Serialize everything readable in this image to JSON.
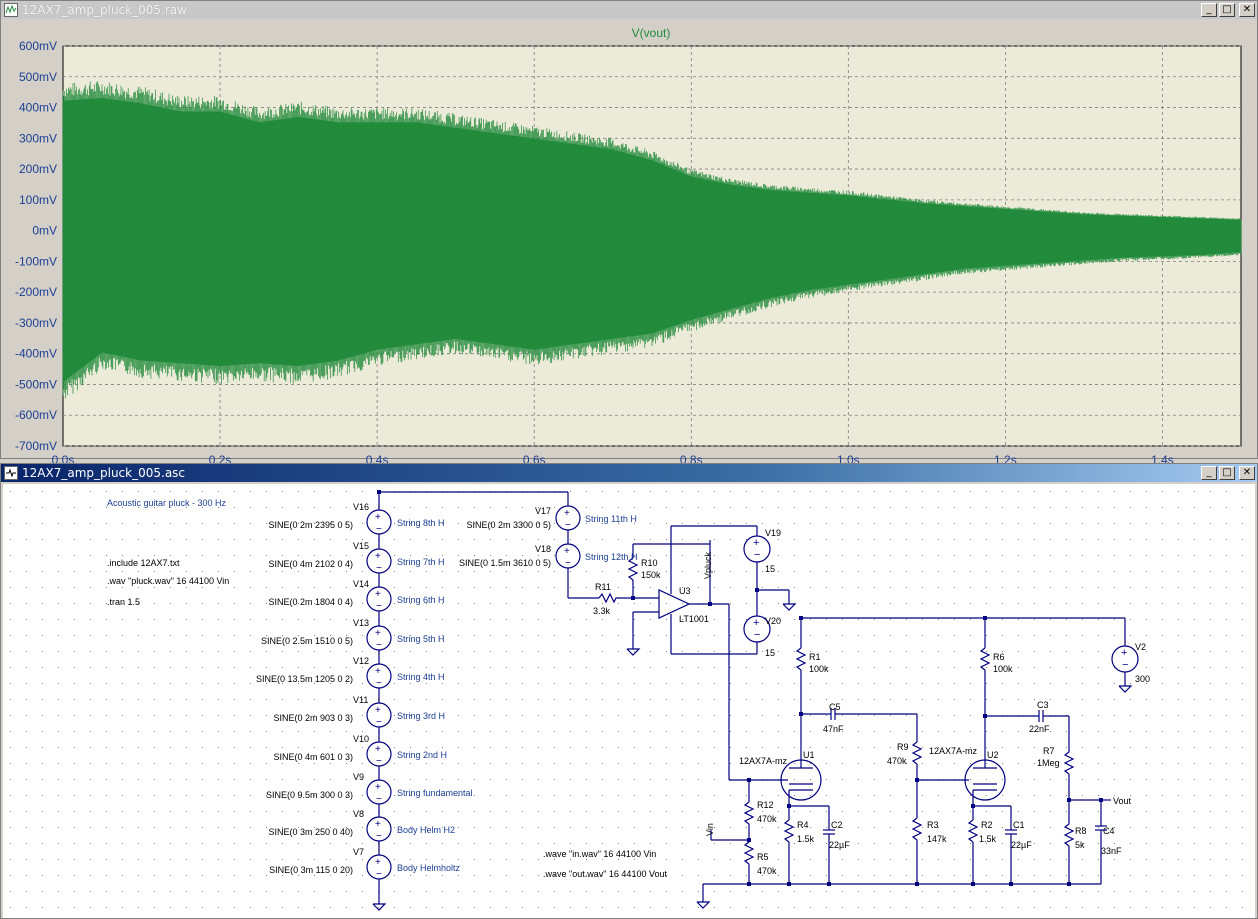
{
  "plot_window": {
    "title": "12AX7_amp_pluck_005.raw",
    "trace_label": "V(vout)",
    "trace_color": "#228b3c",
    "y_ticks": [
      "600mV",
      "500mV",
      "400mV",
      "300mV",
      "200mV",
      "100mV",
      "0mV",
      "-100mV",
      "-200mV",
      "-300mV",
      "-400mV",
      "-500mV",
      "-600mV",
      "-700mV"
    ],
    "x_ticks": [
      "0.0s",
      "0.2s",
      "0.4s",
      "0.6s",
      "0.8s",
      "1.0s",
      "1.2s",
      "1.4s"
    ]
  },
  "chart_data": {
    "type": "line",
    "title": "V(vout)",
    "xlabel": "",
    "ylabel": "",
    "x_unit": "s",
    "y_unit": "mV",
    "xlim": [
      0,
      1.5
    ],
    "ylim": [
      -700,
      600
    ],
    "grid": true,
    "series": [
      {
        "name": "V(vout)",
        "envelope_top": [
          [
            0.0,
            480
          ],
          [
            0.05,
            490
          ],
          [
            0.1,
            470
          ],
          [
            0.15,
            440
          ],
          [
            0.2,
            440
          ],
          [
            0.25,
            400
          ],
          [
            0.3,
            420
          ],
          [
            0.35,
            400
          ],
          [
            0.4,
            400
          ],
          [
            0.45,
            400
          ],
          [
            0.5,
            380
          ],
          [
            0.55,
            360
          ],
          [
            0.6,
            340
          ],
          [
            0.65,
            320
          ],
          [
            0.7,
            300
          ],
          [
            0.75,
            260
          ],
          [
            0.8,
            200
          ],
          [
            0.85,
            170
          ],
          [
            0.9,
            150
          ],
          [
            0.95,
            140
          ],
          [
            1.0,
            130
          ],
          [
            1.05,
            115
          ],
          [
            1.1,
            100
          ],
          [
            1.15,
            90
          ],
          [
            1.2,
            80
          ],
          [
            1.25,
            70
          ],
          [
            1.3,
            60
          ],
          [
            1.35,
            55
          ],
          [
            1.4,
            50
          ],
          [
            1.45,
            45
          ],
          [
            1.5,
            40
          ]
        ],
        "envelope_bottom": [
          [
            0.0,
            -560
          ],
          [
            0.05,
            -450
          ],
          [
            0.1,
            -480
          ],
          [
            0.15,
            -490
          ],
          [
            0.2,
            -500
          ],
          [
            0.25,
            -490
          ],
          [
            0.3,
            -500
          ],
          [
            0.35,
            -480
          ],
          [
            0.4,
            -440
          ],
          [
            0.45,
            -420
          ],
          [
            0.5,
            -400
          ],
          [
            0.55,
            -420
          ],
          [
            0.6,
            -440
          ],
          [
            0.65,
            -420
          ],
          [
            0.7,
            -400
          ],
          [
            0.75,
            -380
          ],
          [
            0.8,
            -330
          ],
          [
            0.85,
            -290
          ],
          [
            0.9,
            -250
          ],
          [
            0.95,
            -220
          ],
          [
            1.0,
            -200
          ],
          [
            1.05,
            -180
          ],
          [
            1.1,
            -160
          ],
          [
            1.15,
            -140
          ],
          [
            1.2,
            -130
          ],
          [
            1.25,
            -120
          ],
          [
            1.3,
            -110
          ],
          [
            1.35,
            -100
          ],
          [
            1.4,
            -95
          ],
          [
            1.45,
            -90
          ],
          [
            1.5,
            -80
          ]
        ]
      }
    ]
  },
  "schematic_window": {
    "title": "12AX7_amp_pluck_005.asc",
    "comment": "Acoustic guitar pluck - 300 Hz",
    "directives": [
      ".include 12AX7.txt",
      ".wav \"pluck.wav\" 16 44100 Vin",
      ".tran 1.5"
    ],
    "wave_directives": [
      ".wave \"in.wav\" 16 44100 Vin",
      ".wave \"out.wav\" 16 44100 Vout"
    ],
    "sources": [
      {
        "ref": "V16",
        "value": "SINE(0 2m 2395 0 5)",
        "label": "String 8th H"
      },
      {
        "ref": "V15",
        "value": "SINE(0 4m 2102 0 4)",
        "label": "String 7th H"
      },
      {
        "ref": "V14",
        "value": "SINE(0 2m 1804 0 4)",
        "label": "String 6th H"
      },
      {
        "ref": "V13",
        "value": "SINE(0 2.5m 1510 0 5)",
        "label": "String 5th H"
      },
      {
        "ref": "V12",
        "value": "SINE(0 13.5m 1205 0 2)",
        "label": "String 4th H"
      },
      {
        "ref": "V11",
        "value": "SINE(0 2m 903 0 3)",
        "label": "String 3rd H"
      },
      {
        "ref": "V10",
        "value": "SINE(0 4m 601 0 3)",
        "label": "String 2nd H"
      },
      {
        "ref": "V9",
        "value": "SINE(0 9.5m 300 0 3)",
        "label": "String fundamental"
      },
      {
        "ref": "V8",
        "value": "SINE(0 3m 250 0 40)",
        "label": "Body Helm H2"
      },
      {
        "ref": "V7",
        "value": "SINE(0 3m 115 0 20)",
        "label": "Body Helmholtz"
      }
    ],
    "sources_top": [
      {
        "ref": "V17",
        "value": "SINE(0 2m 3300 0 5)",
        "label": "String 11th H"
      },
      {
        "ref": "V18",
        "value": "SINE(0 1.5m 3610 0 5)",
        "label": "String 12th H"
      }
    ],
    "r11": {
      "ref": "R11",
      "value": "3.3k"
    },
    "r10": {
      "ref": "R10",
      "value": "150k"
    },
    "u3": {
      "ref": "U3",
      "value": "LT1001"
    },
    "vpluck": "Vpluck",
    "v19": {
      "ref": "V19",
      "value": "15"
    },
    "v20": {
      "ref": "V20",
      "value": "15"
    },
    "v2": {
      "ref": "V2",
      "value": "300"
    },
    "r1": {
      "ref": "R1",
      "value": "100k"
    },
    "r6": {
      "ref": "R6",
      "value": "100k"
    },
    "c5": {
      "ref": "C5",
      "value": "47nF"
    },
    "c3": {
      "ref": "C3",
      "value": "22nF"
    },
    "r9": {
      "ref": "R9",
      "value": "470k"
    },
    "r7": {
      "ref": "R7",
      "value": "1Meg"
    },
    "u1": {
      "ref": "U1",
      "value": "12AX7A-mz"
    },
    "u2": {
      "ref": "U2",
      "value": "12AX7A-mz"
    },
    "r12": {
      "ref": "R12",
      "value": "470k"
    },
    "r5": {
      "ref": "R5",
      "value": "470k"
    },
    "r4": {
      "ref": "R4",
      "value": "1.5k"
    },
    "c2": {
      "ref": "C2",
      "value": "22µF"
    },
    "r3": {
      "ref": "R3",
      "value": "147k"
    },
    "r2": {
      "ref": "R2",
      "value": "1.5k"
    },
    "c1": {
      "ref": "C1",
      "value": "22µF"
    },
    "r8": {
      "ref": "R8",
      "value": "5k"
    },
    "c4": {
      "ref": "C4",
      "value": "33nF"
    },
    "vin": "Vin",
    "vout": "Vout"
  }
}
